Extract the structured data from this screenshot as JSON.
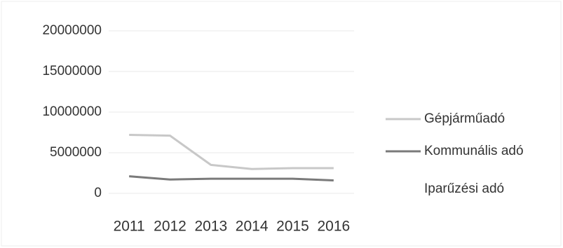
{
  "chart_data": {
    "type": "line",
    "categories": [
      "2011",
      "2012",
      "2013",
      "2014",
      "2015",
      "2016"
    ],
    "series": [
      {
        "name": "Gépjárműadó",
        "color": "#c8c8c8",
        "values": [
          7200000,
          7100000,
          3500000,
          3000000,
          3100000,
          3100000
        ]
      },
      {
        "name": "Kommunális adó",
        "color": "#7a7a7a",
        "values": [
          2100000,
          1700000,
          1800000,
          1800000,
          1800000,
          1600000
        ]
      },
      {
        "name": "Iparűzési adó",
        "color": "#ffffff",
        "values": [
          null,
          null,
          null,
          null,
          null,
          null
        ]
      }
    ],
    "ylim": [
      0,
      20000000
    ],
    "yticks": [
      0,
      5000000,
      10000000,
      15000000,
      20000000
    ],
    "grid": true,
    "legend": "right"
  }
}
